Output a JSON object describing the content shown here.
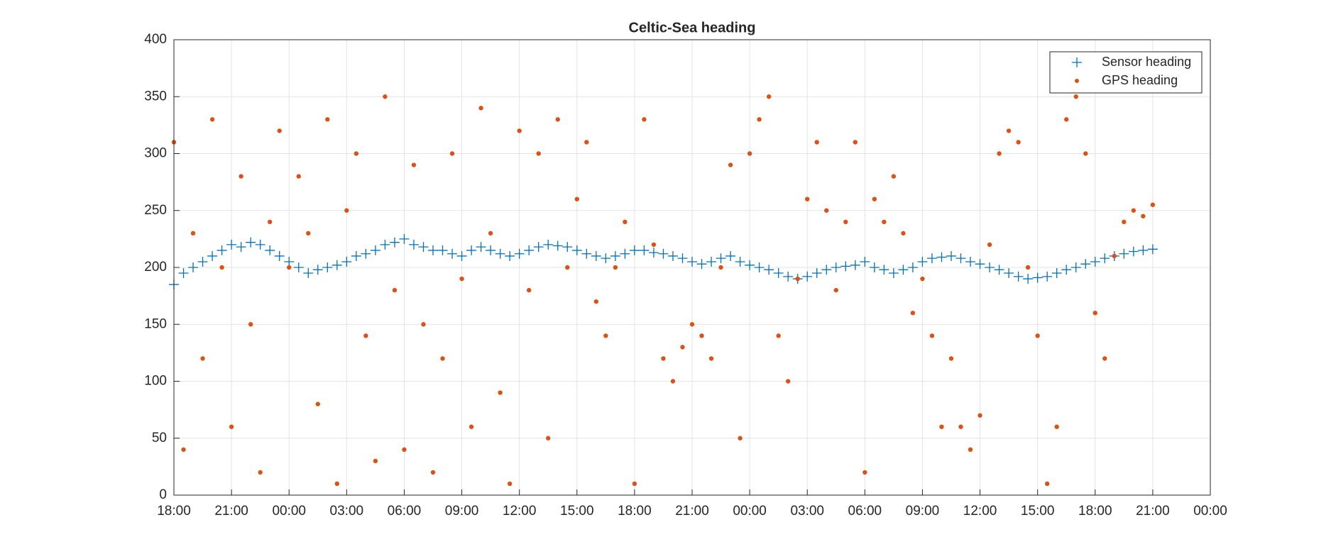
{
  "chart_data": {
    "type": "scatter",
    "title": "Celtic-Sea heading",
    "x": [
      0,
      0.5,
      1,
      1.5,
      2,
      2.5,
      3,
      3.5,
      4,
      4.5,
      5,
      5.5,
      6,
      6.5,
      7,
      7.5,
      8,
      8.5,
      9,
      9.5,
      10,
      10.5,
      11,
      11.5,
      12,
      12.5,
      13,
      13.5,
      14,
      14.5,
      15,
      15.5,
      16,
      16.5,
      17,
      17.5,
      18,
      18.5,
      19,
      19.5,
      20,
      20.5,
      21,
      21.5,
      22,
      22.5,
      23,
      23.5,
      24,
      24.5,
      25,
      25.5,
      26,
      26.5,
      27,
      27.5,
      28,
      28.5,
      29,
      29.5,
      30,
      30.5,
      31,
      31.5,
      32,
      32.5,
      33,
      33.5,
      34,
      34.5,
      35,
      35.5,
      36,
      36.5,
      37,
      37.5,
      38,
      38.5,
      39,
      39.5,
      40,
      40.5,
      41,
      41.5,
      42,
      42.5,
      43,
      43.5,
      44,
      44.5,
      45,
      45.5,
      46,
      46.5,
      47,
      47.5,
      48,
      48.5,
      49,
      49.5,
      50,
      50.5,
      51
    ],
    "series": [
      {
        "name": "Sensor heading",
        "color": "#0072BD",
        "marker": "plus",
        "values": [
          185,
          195,
          200,
          205,
          210,
          215,
          220,
          218,
          222,
          220,
          215,
          210,
          205,
          200,
          195,
          198,
          200,
          202,
          205,
          210,
          212,
          215,
          220,
          222,
          225,
          220,
          218,
          215,
          215,
          212,
          210,
          215,
          218,
          215,
          212,
          210,
          212,
          215,
          218,
          220,
          219,
          218,
          215,
          212,
          210,
          208,
          210,
          212,
          215,
          215,
          213,
          212,
          210,
          208,
          205,
          203,
          205,
          208,
          210,
          205,
          202,
          200,
          198,
          195,
          192,
          190,
          192,
          195,
          198,
          200,
          201,
          202,
          205,
          200,
          198,
          195,
          198,
          200,
          205,
          208,
          209,
          210,
          208,
          205,
          203,
          200,
          198,
          195,
          192,
          190,
          191,
          192,
          195,
          198,
          200,
          203,
          205,
          208,
          210,
          212,
          214,
          215,
          216
        ]
      },
      {
        "name": "GPS heading",
        "color": "#D95319",
        "marker": "dot",
        "values": [
          310,
          40,
          230,
          120,
          330,
          200,
          60,
          280,
          150,
          20,
          240,
          320,
          200,
          280,
          230,
          80,
          330,
          10,
          250,
          300,
          140,
          30,
          350,
          180,
          40,
          290,
          150,
          20,
          120,
          300,
          190,
          60,
          340,
          230,
          90,
          10,
          320,
          180,
          300,
          50,
          330,
          200,
          260,
          310,
          170,
          140,
          200,
          240,
          10,
          330,
          220,
          120,
          100,
          130,
          150,
          140,
          120,
          200,
          290,
          50,
          300,
          330,
          350,
          140,
          100,
          190,
          260,
          310,
          250,
          180,
          240,
          310,
          20,
          260,
          240,
          280,
          230,
          160,
          190,
          140,
          60,
          120,
          60,
          40,
          70,
          220,
          300,
          320,
          310,
          200,
          140,
          10,
          60,
          330,
          350,
          300,
          160,
          120,
          210,
          240,
          250,
          245,
          255
        ]
      }
    ],
    "xlim": [
      0,
      54
    ],
    "xticks": [
      {
        "value": 0,
        "label": "18:00"
      },
      {
        "value": 3,
        "label": "21:00"
      },
      {
        "value": 6,
        "label": "00:00"
      },
      {
        "value": 9,
        "label": "03:00"
      },
      {
        "value": 12,
        "label": "06:00"
      },
      {
        "value": 15,
        "label": "09:00"
      },
      {
        "value": 18,
        "label": "12:00"
      },
      {
        "value": 21,
        "label": "15:00"
      },
      {
        "value": 24,
        "label": "18:00"
      },
      {
        "value": 27,
        "label": "21:00"
      },
      {
        "value": 30,
        "label": "00:00"
      },
      {
        "value": 33,
        "label": "03:00"
      },
      {
        "value": 36,
        "label": "06:00"
      },
      {
        "value": 39,
        "label": "09:00"
      },
      {
        "value": 42,
        "label": "12:00"
      },
      {
        "value": 45,
        "label": "15:00"
      },
      {
        "value": 48,
        "label": "18:00"
      },
      {
        "value": 51,
        "label": "21:00"
      },
      {
        "value": 54,
        "label": "00:00"
      }
    ],
    "ylim": [
      0,
      400
    ],
    "yticks": [
      0,
      50,
      100,
      150,
      200,
      250,
      300,
      350,
      400
    ],
    "grid": true,
    "legend": "northeast"
  }
}
